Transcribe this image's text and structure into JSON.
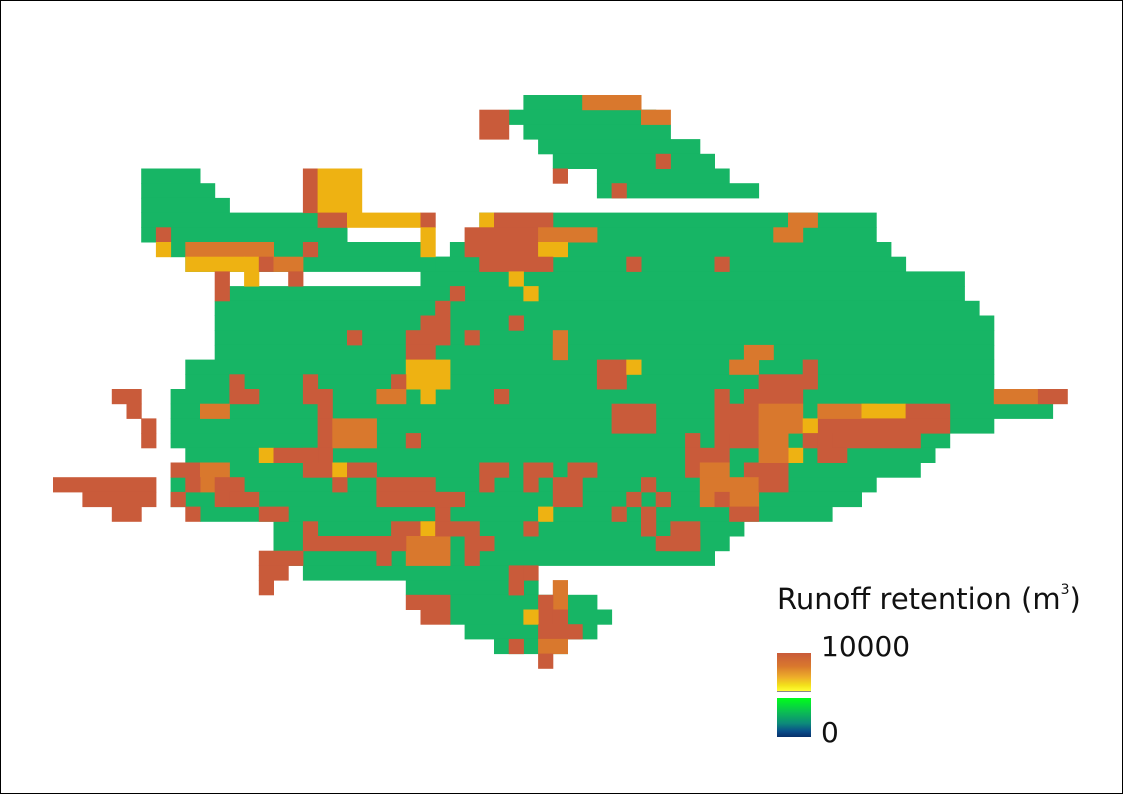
{
  "legend": {
    "title": "Runoff retention (m",
    "unit_exponent": "3",
    "title_close": ")",
    "max_label": "10000",
    "min_label": "0"
  },
  "colors": {
    "green": "#17b565",
    "rust": "#c95b3a",
    "orange": "#d9782d",
    "gold": "#eeb212"
  }
}
